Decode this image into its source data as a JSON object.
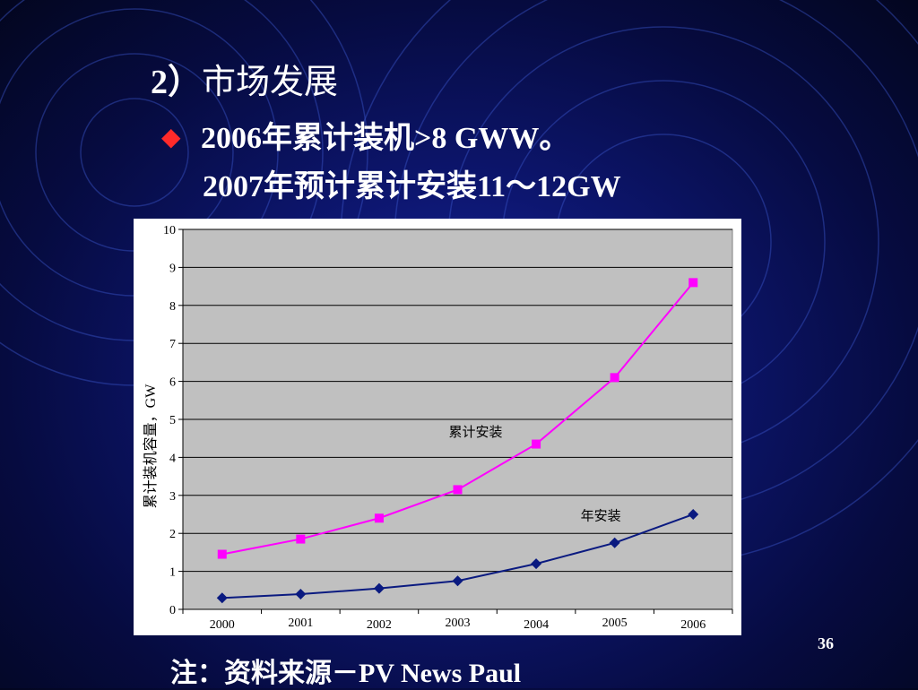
{
  "slide": {
    "heading": {
      "number": "2）",
      "title": "市场发展"
    },
    "bullet": {
      "icon": "red-diamond-icon",
      "line1": "2006年累计装机>8 GWW。",
      "line2": "2007年预计累计安装11～12GW"
    },
    "footnote": "注：资料来源－PV News Paul",
    "page_number": "36"
  },
  "colors": {
    "background": "#0a1260",
    "bullet": "#ff2a2a",
    "plot_area": "#c0c0c0",
    "cumulative_series": "#ff00ff",
    "annual_series": "#0a1a80"
  },
  "chart_data": {
    "type": "line",
    "title": "",
    "xlabel": "",
    "ylabel": "累计装机容量，GW",
    "categories": [
      "2000",
      "2001",
      "2002",
      "2003",
      "2004",
      "2005",
      "2006"
    ],
    "ylim": [
      0,
      10
    ],
    "yticks": [
      "0",
      "1",
      "2",
      "3",
      "4",
      "5",
      "6",
      "7",
      "8",
      "9",
      "10"
    ],
    "grid": true,
    "legend": "none",
    "series": [
      {
        "name": "累计安装",
        "marker": "square",
        "color": "#ff00ff",
        "values": [
          1.45,
          1.85,
          2.4,
          3.15,
          4.35,
          6.1,
          8.6
        ]
      },
      {
        "name": "年安装",
        "marker": "diamond",
        "color": "#0a1a80",
        "values": [
          0.3,
          0.4,
          0.55,
          0.75,
          1.2,
          1.75,
          2.5
        ]
      }
    ]
  }
}
